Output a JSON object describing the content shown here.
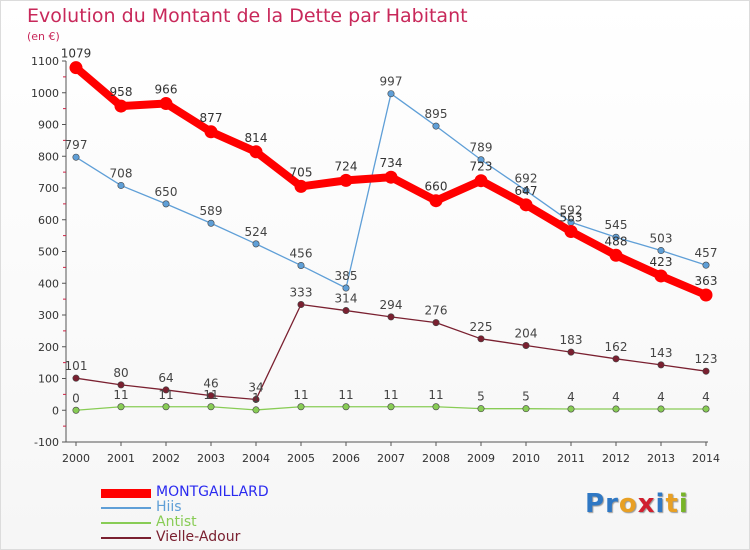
{
  "header": {
    "title": "Evolution du Montant de la Dette par Habitant",
    "unit": "(en €)"
  },
  "colors": {
    "title": "#c8285a",
    "axis": "#555555",
    "grid": "#cccccc"
  },
  "watermark": {
    "text": "Proxiti",
    "letters": [
      "P",
      "r",
      "o",
      "x",
      "i",
      "t",
      "i"
    ],
    "letter_colors": [
      "#2f78c4",
      "#2f78c4",
      "#e8a024",
      "#d02030",
      "#2f78c4",
      "#e8a024",
      "#78b428"
    ]
  },
  "chart_data": {
    "type": "line",
    "title": "Evolution du Montant de la Dette par Habitant",
    "ylabel": "(en €)",
    "xlabel": "",
    "ylim": [
      -100,
      1100
    ],
    "ytick_step": 100,
    "grid": false,
    "legend_position": "bottom-left",
    "x": [
      2000,
      2001,
      2002,
      2003,
      2004,
      2005,
      2006,
      2007,
      2008,
      2009,
      2010,
      2011,
      2012,
      2013,
      2014
    ],
    "series": [
      {
        "name": "MONTGAILLARD",
        "color": "#ff0000",
        "label_color": "#2a2af0",
        "thick": true,
        "values": [
          1079,
          958,
          966,
          877,
          814,
          705,
          724,
          734,
          660,
          723,
          647,
          563,
          488,
          423,
          363
        ]
      },
      {
        "name": "Hiis",
        "color": "#5f9fd7",
        "label_color": "#5f9fd7",
        "thick": false,
        "values": [
          797,
          708,
          650,
          589,
          524,
          456,
          385,
          997,
          895,
          789,
          692,
          592,
          545,
          503,
          457
        ]
      },
      {
        "name": "Antist",
        "color": "#88cc55",
        "label_color": "#88cc55",
        "thick": false,
        "values": [
          0,
          11,
          11,
          11,
          1,
          11,
          11,
          11,
          11,
          5,
          5,
          4,
          4,
          4,
          4
        ]
      },
      {
        "name": "Vielle-Adour",
        "color": "#7a2030",
        "label_color": "#7a2030",
        "thick": false,
        "values": [
          101,
          80,
          64,
          46,
          34,
          333,
          314,
          294,
          276,
          225,
          204,
          183,
          162,
          143,
          123
        ]
      }
    ]
  }
}
